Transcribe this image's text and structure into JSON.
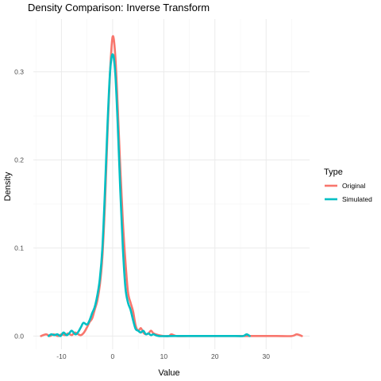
{
  "chart_data": {
    "type": "line",
    "title": "Density Comparison: Inverse Transform",
    "xlabel": "Value",
    "ylabel": "Density",
    "xlim": [
      -15.5,
      38.5
    ],
    "ylim": [
      -0.015,
      0.36
    ],
    "x_ticks": [
      -10,
      0,
      10,
      20,
      30
    ],
    "y_ticks": [
      0.0,
      0.1,
      0.2,
      0.3
    ],
    "x_tick_labels": [
      "-10",
      "0",
      "10",
      "20",
      "30"
    ],
    "y_tick_labels": [
      "0.0",
      "0.1",
      "0.2",
      "0.3"
    ],
    "grid": true,
    "legend": {
      "title": "Type",
      "position": "right"
    },
    "series": [
      {
        "name": "Original",
        "color": "#F8766D",
        "points": [
          [
            -14,
            0.0
          ],
          [
            -13,
            0.002
          ],
          [
            -12.3,
            0.0
          ],
          [
            -11.5,
            0.002
          ],
          [
            -10.7,
            0.0
          ],
          [
            -10,
            0.002
          ],
          [
            -9.3,
            0.001
          ],
          [
            -8.7,
            0.003
          ],
          [
            -8,
            0.001
          ],
          [
            -7.4,
            0.004
          ],
          [
            -6.7,
            0.002
          ],
          [
            -6.2,
            0.001
          ],
          [
            -5.6,
            0.004
          ],
          [
            -5,
            0.01
          ],
          [
            -4.5,
            0.016
          ],
          [
            -4,
            0.02
          ],
          [
            -3.5,
            0.03
          ],
          [
            -3,
            0.04
          ],
          [
            -2.5,
            0.058
          ],
          [
            -2,
            0.09
          ],
          [
            -1.5,
            0.15
          ],
          [
            -1,
            0.23
          ],
          [
            -0.5,
            0.3
          ],
          [
            0,
            0.34
          ],
          [
            0.5,
            0.32
          ],
          [
            1,
            0.26
          ],
          [
            1.5,
            0.19
          ],
          [
            2,
            0.13
          ],
          [
            2.5,
            0.085
          ],
          [
            3,
            0.05
          ],
          [
            3.5,
            0.038
          ],
          [
            4,
            0.028
          ],
          [
            4.5,
            0.012
          ],
          [
            5,
            0.006
          ],
          [
            5.5,
            0.009
          ],
          [
            6,
            0.004
          ],
          [
            6.5,
            0.002
          ],
          [
            7,
            0.003
          ],
          [
            7.5,
            0.006
          ],
          [
            8,
            0.003
          ],
          [
            9,
            0.001
          ],
          [
            10,
            0.0
          ],
          [
            11,
            0.0
          ],
          [
            11.5,
            0.002
          ],
          [
            12.5,
            0.0
          ],
          [
            15,
            0.0
          ],
          [
            20,
            0.0
          ],
          [
            25,
            0.0
          ],
          [
            28,
            0.0
          ],
          [
            32,
            0.0
          ],
          [
            35,
            0.0
          ],
          [
            36,
            0.002
          ],
          [
            37,
            0.0
          ]
        ]
      },
      {
        "name": "Simulated",
        "color": "#00BFC4",
        "points": [
          [
            -12.5,
            0.0
          ],
          [
            -12,
            0.002
          ],
          [
            -11.4,
            0.001
          ],
          [
            -10.8,
            0.002
          ],
          [
            -10.2,
            0.0
          ],
          [
            -9.6,
            0.004
          ],
          [
            -9,
            0.001
          ],
          [
            -8.5,
            0.003
          ],
          [
            -8,
            0.006
          ],
          [
            -7.3,
            0.002
          ],
          [
            -6.8,
            0.004
          ],
          [
            -6.2,
            0.01
          ],
          [
            -5.7,
            0.015
          ],
          [
            -5,
            0.013
          ],
          [
            -4.5,
            0.018
          ],
          [
            -4,
            0.026
          ],
          [
            -3.5,
            0.033
          ],
          [
            -3,
            0.046
          ],
          [
            -2.5,
            0.065
          ],
          [
            -2,
            0.1
          ],
          [
            -1.5,
            0.165
          ],
          [
            -1,
            0.24
          ],
          [
            -0.5,
            0.3
          ],
          [
            0,
            0.32
          ],
          [
            0.5,
            0.3
          ],
          [
            1,
            0.24
          ],
          [
            1.5,
            0.165
          ],
          [
            2,
            0.1
          ],
          [
            2.5,
            0.055
          ],
          [
            3,
            0.038
          ],
          [
            3.5,
            0.03
          ],
          [
            4,
            0.018
          ],
          [
            4.5,
            0.008
          ],
          [
            5,
            0.006
          ],
          [
            5.5,
            0.004
          ],
          [
            6,
            0.006
          ],
          [
            6.5,
            0.002
          ],
          [
            7,
            0.003
          ],
          [
            7.5,
            0.001
          ],
          [
            8,
            0.002
          ],
          [
            9,
            0.0
          ],
          [
            12,
            0.0
          ],
          [
            16,
            0.0
          ],
          [
            20,
            0.0
          ],
          [
            24,
            0.0
          ],
          [
            25.5,
            0.0
          ],
          [
            26.2,
            0.002
          ],
          [
            26.8,
            0.0
          ]
        ]
      }
    ]
  }
}
